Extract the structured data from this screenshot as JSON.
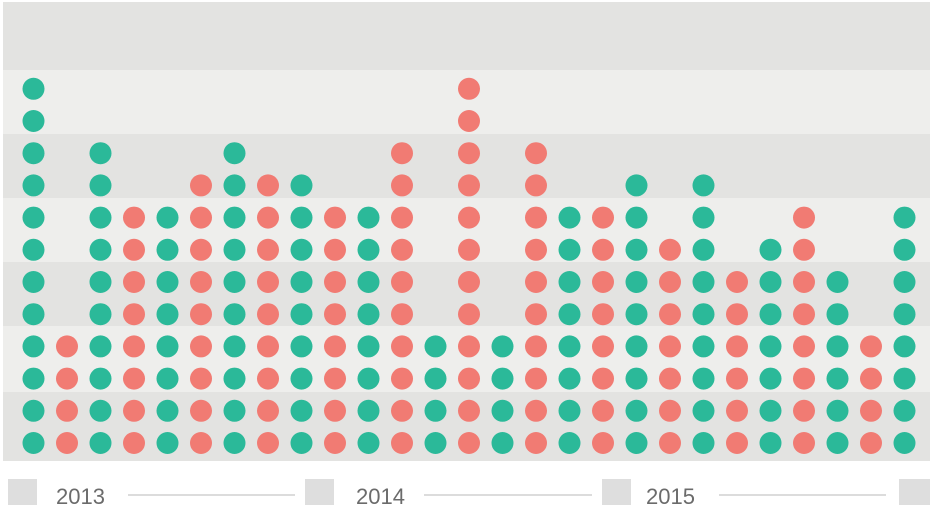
{
  "chart_data": {
    "type": "dot-matrix",
    "title": "",
    "xlabel": "",
    "ylabel": "",
    "x_axis_labels": [
      "2013",
      "2014",
      "2015"
    ],
    "ylim": [
      0,
      12
    ],
    "colors": {
      "teal": "#2bb999",
      "salmon": "#f17b73",
      "band_dark": "#e3e3e1",
      "band_light": "#eeeeec",
      "marker": "#dedede",
      "rule": "#dcdcdc"
    },
    "columns": [
      {
        "color": "teal",
        "count": 12
      },
      {
        "color": "salmon",
        "count": 4
      },
      {
        "color": "teal",
        "count": 10
      },
      {
        "color": "salmon",
        "count": 8
      },
      {
        "color": "teal",
        "count": 8
      },
      {
        "color": "salmon",
        "count": 9
      },
      {
        "color": "teal",
        "count": 10
      },
      {
        "color": "salmon",
        "count": 9
      },
      {
        "color": "teal",
        "count": 9
      },
      {
        "color": "salmon",
        "count": 8
      },
      {
        "color": "teal",
        "count": 8
      },
      {
        "color": "salmon",
        "count": 10
      },
      {
        "color": "teal",
        "count": 4
      },
      {
        "color": "salmon",
        "count": 12
      },
      {
        "color": "teal",
        "count": 4
      },
      {
        "color": "salmon",
        "count": 10
      },
      {
        "color": "teal",
        "count": 8
      },
      {
        "color": "salmon",
        "count": 8
      },
      {
        "color": "teal",
        "count": 9
      },
      {
        "color": "salmon",
        "count": 7
      },
      {
        "color": "teal",
        "count": 9
      },
      {
        "color": "salmon",
        "count": 6
      },
      {
        "color": "teal",
        "count": 7
      },
      {
        "color": "salmon",
        "count": 8
      },
      {
        "color": "teal",
        "count": 6
      },
      {
        "color": "salmon",
        "count": 4
      },
      {
        "color": "teal",
        "count": 8
      }
    ]
  }
}
